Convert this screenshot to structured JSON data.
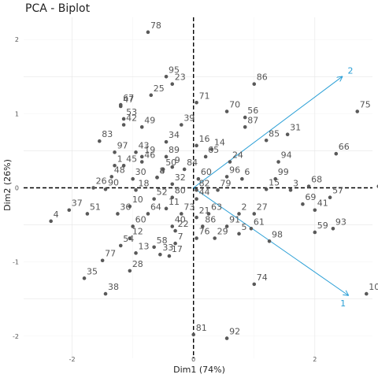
{
  "chart_data": {
    "type": "scatter",
    "title": "PCA - Biplot",
    "xlabel": "Dim1 (74%)",
    "ylabel": "Dim2 (26%)",
    "xlim": [
      -2.8,
      2.95
    ],
    "ylim": [
      -2.3,
      2.3
    ],
    "x_ticks": [
      -2,
      0,
      2
    ],
    "y_ticks": [
      -2,
      -1,
      0,
      1,
      2
    ],
    "grid": true,
    "reference_lines": {
      "x": 0,
      "y": 0,
      "style": "dashed"
    },
    "point_color": "#595959",
    "arrow_color": "#2a9fd6",
    "points": [
      {
        "label": "78",
        "x": -0.75,
        "y": 2.1
      },
      {
        "label": "86",
        "x": 1.0,
        "y": 1.4
      },
      {
        "label": "95",
        "x": -0.45,
        "y": 1.5
      },
      {
        "label": "25",
        "x": -0.7,
        "y": 1.25
      },
      {
        "label": "23",
        "x": -0.35,
        "y": 1.4
      },
      {
        "label": "71",
        "x": 0.05,
        "y": 1.15
      },
      {
        "label": "67",
        "x": -1.2,
        "y": 1.12
      },
      {
        "label": "47",
        "x": -1.2,
        "y": 1.1
      },
      {
        "label": "70",
        "x": 0.55,
        "y": 1.03
      },
      {
        "label": "56",
        "x": 0.85,
        "y": 0.95
      },
      {
        "label": "75",
        "x": 2.7,
        "y": 1.03
      },
      {
        "label": "53",
        "x": -1.15,
        "y": 0.93
      },
      {
        "label": "42",
        "x": -1.15,
        "y": 0.85
      },
      {
        "label": "49",
        "x": -0.85,
        "y": 0.82
      },
      {
        "label": "39",
        "x": -0.2,
        "y": 0.85
      },
      {
        "label": "87",
        "x": 0.85,
        "y": 0.82
      },
      {
        "label": "31",
        "x": 1.55,
        "y": 0.72
      },
      {
        "label": "83",
        "x": -1.55,
        "y": 0.63
      },
      {
        "label": "19",
        "x": -0.85,
        "y": 0.42
      },
      {
        "label": "34",
        "x": -0.45,
        "y": 0.62
      },
      {
        "label": "16",
        "x": 0.05,
        "y": 0.57
      },
      {
        "label": "85",
        "x": 1.2,
        "y": 0.64
      },
      {
        "label": "14",
        "x": 0.3,
        "y": 0.52
      },
      {
        "label": "97",
        "x": -1.3,
        "y": 0.48
      },
      {
        "label": "43",
        "x": -0.95,
        "y": 0.48
      },
      {
        "label": "89",
        "x": -0.45,
        "y": 0.42
      },
      {
        "label": "66",
        "x": 2.35,
        "y": 0.46
      },
      {
        "label": "94",
        "x": 1.4,
        "y": 0.35
      },
      {
        "label": "9",
        "x": -0.35,
        "y": 0.28
      },
      {
        "label": "84",
        "x": -0.15,
        "y": 0.25
      },
      {
        "label": "65",
        "x": 0.2,
        "y": 0.42
      },
      {
        "label": "24",
        "x": 0.6,
        "y": 0.35
      },
      {
        "label": "1",
        "x": -1.3,
        "y": 0.3
      },
      {
        "label": "45",
        "x": -1.15,
        "y": 0.3
      },
      {
        "label": "46",
        "x": -0.85,
        "y": 0.35
      },
      {
        "label": "50",
        "x": -0.5,
        "y": 0.25
      },
      {
        "label": "48",
        "x": -1.35,
        "y": 0.15
      },
      {
        "label": "30",
        "x": -1.0,
        "y": 0.12
      },
      {
        "label": "8",
        "x": -0.6,
        "y": 0.14
      },
      {
        "label": "4b",
        "x": -0.6,
        "y": 0.14
      },
      {
        "label": "96",
        "x": 0.55,
        "y": 0.15
      },
      {
        "label": "6",
        "x": 0.8,
        "y": 0.12
      },
      {
        "label": "99",
        "x": 1.35,
        "y": 0.12
      },
      {
        "label": "68",
        "x": 1.9,
        "y": 0.02
      },
      {
        "label": "20",
        "x": 3.05,
        "y": 0.02
      },
      {
        "label": "60",
        "x": 0.08,
        "y": 0.12
      },
      {
        "label": "32",
        "x": -0.35,
        "y": 0.05
      },
      {
        "label": "26",
        "x": -1.65,
        "y": 0.0
      },
      {
        "label": "90",
        "x": -1.45,
        "y": -0.02
      },
      {
        "label": "18",
        "x": -0.95,
        "y": -0.03
      },
      {
        "label": "82",
        "x": 0.05,
        "y": -0.03
      },
      {
        "label": "79",
        "x": 0.4,
        "y": -0.03
      },
      {
        "label": "15",
        "x": 1.2,
        "y": -0.02
      },
      {
        "label": "3",
        "x": 1.6,
        "y": -0.03
      },
      {
        "label": "57",
        "x": 2.25,
        "y": -0.13
      },
      {
        "label": "62",
        "x": 3.35,
        "y": -0.13
      },
      {
        "label": "52",
        "x": -0.65,
        "y": -0.15
      },
      {
        "label": "80",
        "x": -0.35,
        "y": -0.13
      },
      {
        "label": "37",
        "x": -2.05,
        "y": -0.3
      },
      {
        "label": "10",
        "x": -1.05,
        "y": -0.25
      },
      {
        "label": "44",
        "x": 0.05,
        "y": -0.15
      },
      {
        "label": "21",
        "x": 0.05,
        "y": -0.4
      },
      {
        "label": "69",
        "x": 1.8,
        "y": -0.22
      },
      {
        "label": "41",
        "x": 2.0,
        "y": -0.3
      },
      {
        "label": "36",
        "x": -1.25,
        "y": -0.35
      },
      {
        "label": "64",
        "x": -0.75,
        "y": -0.35
      },
      {
        "label": "11",
        "x": -0.45,
        "y": -0.28
      },
      {
        "label": "73",
        "x": -0.2,
        "y": -0.35
      },
      {
        "label": "63",
        "x": 0.25,
        "y": -0.35
      },
      {
        "label": "2",
        "x": 0.75,
        "y": -0.35
      },
      {
        "label": "27",
        "x": 1.0,
        "y": -0.35
      },
      {
        "label": "51",
        "x": -1.75,
        "y": -0.35
      },
      {
        "label": "4",
        "x": -2.35,
        "y": -0.45
      },
      {
        "label": "60b",
        "x": -1.0,
        "y": -0.52
      },
      {
        "label": "40",
        "x": -0.35,
        "y": -0.52
      },
      {
        "label": "86b",
        "x": 0.15,
        "y": -0.52
      },
      {
        "label": "91",
        "x": 0.55,
        "y": -0.52
      },
      {
        "label": "61",
        "x": 0.95,
        "y": -0.55
      },
      {
        "label": "93",
        "x": 2.3,
        "y": -0.55
      },
      {
        "label": "12",
        "x": -1.05,
        "y": -0.68
      },
      {
        "label": "22",
        "x": -0.3,
        "y": -0.58
      },
      {
        "label": "54",
        "x": -1.2,
        "y": -0.78
      },
      {
        "label": "58",
        "x": -0.65,
        "y": -0.8
      },
      {
        "label": "7",
        "x": -0.3,
        "y": -0.75
      },
      {
        "label": "76",
        "x": 0.05,
        "y": -0.68
      },
      {
        "label": "29",
        "x": 0.35,
        "y": -0.68
      },
      {
        "label": "5",
        "x": 0.75,
        "y": -0.62
      },
      {
        "label": "59",
        "x": 2.0,
        "y": -0.6
      },
      {
        "label": "98",
        "x": 1.25,
        "y": -0.72
      },
      {
        "label": "77",
        "x": -1.5,
        "y": -0.98
      },
      {
        "label": "13",
        "x": -0.95,
        "y": -0.88
      },
      {
        "label": "33",
        "x": -0.55,
        "y": -0.9
      },
      {
        "label": "17",
        "x": -0.4,
        "y": -0.92
      },
      {
        "label": "28",
        "x": -1.05,
        "y": -1.12
      },
      {
        "label": "35",
        "x": -1.8,
        "y": -1.22
      },
      {
        "label": "38",
        "x": -1.45,
        "y": -1.43
      },
      {
        "label": "74",
        "x": 1.0,
        "y": -1.3
      },
      {
        "label": "100",
        "x": 2.85,
        "y": -1.43
      },
      {
        "label": "81",
        "x": 0.0,
        "y": -1.98
      },
      {
        "label": "92",
        "x": 0.55,
        "y": -2.03
      }
    ],
    "point_labels": {
      "78": "78",
      "86": "86",
      "95": "95",
      "25": "25",
      "23": "23",
      "71": "71",
      "67": "67",
      "47": "47",
      "70": "70",
      "56": "56",
      "75": "75",
      "53": "53",
      "42": "42",
      "49": "49",
      "39": "39",
      "87": "87",
      "31": "31",
      "83": "83",
      "19": "19",
      "34": "34",
      "16": "16",
      "85": "85",
      "14": "14",
      "97": "97",
      "43": "43",
      "89": "89",
      "66": "66",
      "94": "94",
      "9": "9",
      "84": "84",
      "65": "65",
      "24": "24",
      "1": "1",
      "45": "45",
      "46": "46",
      "50": "50",
      "48": "48",
      "30": "30",
      "8": "8",
      "96": "96",
      "6": "6",
      "99": "99",
      "68": "68",
      "20": "20",
      "32": "32",
      "26": "26",
      "90": "90",
      "18": "18",
      "82": "82",
      "79": "79",
      "15": "15",
      "3": "3",
      "57": "57",
      "62": "62",
      "52": "52",
      "80": "80",
      "37": "37",
      "10": "10",
      "44": "44",
      "21": "21",
      "69": "69",
      "41": "41",
      "36": "36",
      "64": "64",
      "11": "11",
      "73": "73",
      "63": "63",
      "2": "2",
      "27": "27",
      "51": "51",
      "4": "4",
      "60": "60",
      "40": "40",
      "91": "91",
      "61": "61",
      "93": "93",
      "12": "12",
      "22": "22",
      "54": "54",
      "58": "58",
      "7": "7",
      "76": "76",
      "29": "29",
      "5": "5",
      "59": "59",
      "98": "98",
      "77": "77",
      "13": "13",
      "33": "33",
      "17": "17",
      "28": "28",
      "35": "35",
      "38": "38",
      "74": "74",
      "100": "100",
      "81": "81",
      "92": "92",
      "88": "88",
      "55": "55"
    },
    "arrows": [
      {
        "label": "2",
        "x": 2.45,
        "y": 1.5
      },
      {
        "label": "1",
        "x": 2.55,
        "y": -1.45
      }
    ]
  }
}
